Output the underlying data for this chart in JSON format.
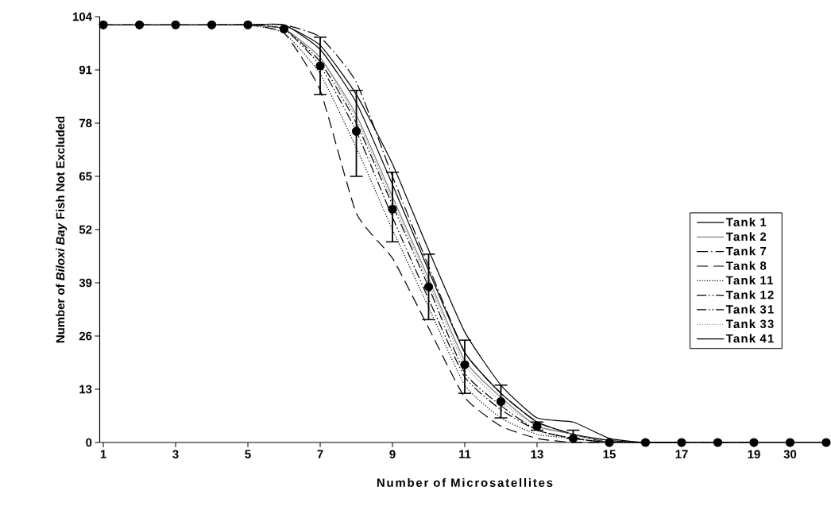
{
  "chart_data": {
    "type": "line",
    "xlabel": "Number of Microsatellites",
    "ylabel": "Number of *Biloxi Bay* Fish Not Excluded",
    "categories": [
      "1",
      null,
      "3",
      null,
      "5",
      null,
      "7",
      null,
      "9",
      null,
      "11",
      null,
      "13",
      null,
      "15",
      null,
      "17",
      null,
      "19",
      "30",
      null
    ],
    "ylim": [
      0,
      104
    ],
    "yticks": [
      0,
      13,
      26,
      39,
      52,
      65,
      78,
      91,
      104
    ],
    "grid": false,
    "legend": "right",
    "series": [
      {
        "name": "Tank 1",
        "color": "#000000",
        "line_style": "solid",
        "marker": "none",
        "values": [
          102,
          102,
          102,
          102,
          102,
          102,
          96,
          83,
          63,
          42,
          22,
          12,
          5,
          2,
          0.5,
          0,
          0,
          0,
          0,
          0,
          0
        ]
      },
      {
        "name": "Tank 2",
        "color": "#808080",
        "line_style": "solid",
        "marker": "none",
        "values": [
          null,
          null,
          null,
          null,
          102,
          101,
          94,
          80,
          60,
          40,
          20,
          11,
          4,
          2,
          0,
          0,
          0,
          0,
          0,
          0,
          0
        ]
      },
      {
        "name": "Tank 7",
        "color": "#000000",
        "line_style": "dashdot",
        "marker": "none",
        "values": [
          102,
          102,
          102,
          102,
          102,
          102,
          99,
          88,
          65,
          43,
          22,
          12,
          5,
          2,
          0,
          0,
          0,
          null,
          null,
          null,
          null
        ]
      },
      {
        "name": "Tank 8",
        "color": "#000000",
        "line_style": "dashed",
        "marker": "none",
        "values": [
          null,
          null,
          null,
          null,
          102,
          100,
          86,
          56,
          45,
          28,
          11,
          4,
          1,
          0,
          0,
          0,
          0,
          null,
          null,
          null,
          null
        ]
      },
      {
        "name": "Tank 11",
        "color": "#000000",
        "line_style": "dotted",
        "marker": "none",
        "values": [
          102,
          102,
          102,
          102,
          102,
          100,
          90,
          72,
          52,
          33,
          14,
          6,
          2,
          1,
          0,
          0,
          0,
          0,
          0,
          null,
          null
        ]
      },
      {
        "name": "Tank 12",
        "color": "#000000",
        "line_style": "dashdotdot",
        "marker": "none",
        "values": [
          null,
          null,
          null,
          null,
          102,
          101,
          93,
          78,
          58,
          38,
          17,
          9,
          3,
          1,
          0,
          0,
          0,
          0,
          0,
          null,
          null
        ]
      },
      {
        "name": "Tank 31",
        "color": "#000000",
        "line_style": "dashdotdot",
        "marker": "none",
        "values": [
          102,
          102,
          102,
          102,
          102,
          101,
          92,
          76,
          55,
          35,
          16,
          8,
          3,
          1,
          0,
          0,
          null,
          null,
          null,
          null,
          null
        ]
      },
      {
        "name": "Tank 33",
        "color": "#808080",
        "line_style": "dotted",
        "marker": "none",
        "values": [
          null,
          null,
          null,
          null,
          102,
          101,
          94,
          79,
          59,
          39,
          19,
          10,
          4,
          2,
          0,
          0,
          null,
          null,
          null,
          null,
          null
        ]
      },
      {
        "name": "Tank 41",
        "color": "#000000",
        "line_style": "solid",
        "marker": "none",
        "values": [
          null,
          null,
          null,
          null,
          null,
          102,
          97,
          85,
          68,
          47,
          27,
          14,
          6,
          5,
          1,
          0,
          0,
          0,
          0,
          0,
          0
        ]
      },
      {
        "type": "scatter",
        "color": "#000000",
        "marker": "circle",
        "values": [
          102,
          102,
          102,
          102,
          102,
          101,
          92,
          76,
          57,
          38,
          19,
          10,
          4,
          1,
          0,
          0,
          0,
          0,
          0,
          0,
          0
        ],
        "errors": [
          null,
          null,
          null,
          null,
          null,
          null,
          [
            85,
            99
          ],
          [
            65,
            86
          ],
          [
            49,
            66
          ],
          [
            30,
            46
          ],
          [
            12,
            25
          ],
          [
            6,
            14
          ],
          [
            3,
            5
          ],
          [
            1,
            3
          ],
          null,
          null,
          null,
          null,
          null,
          null,
          null
        ]
      }
    ]
  }
}
